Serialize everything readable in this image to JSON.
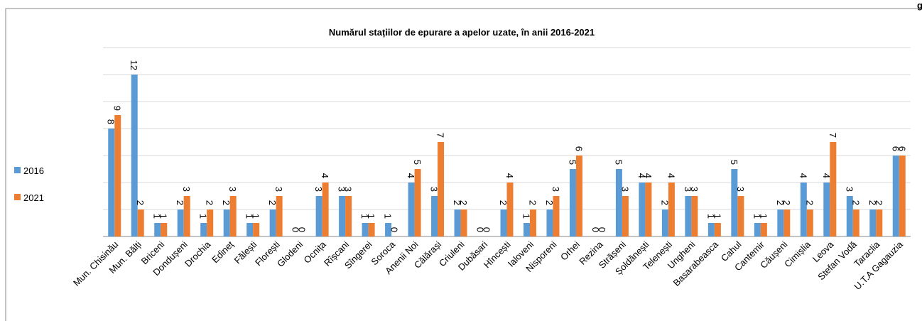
{
  "corner_text": "g",
  "chart_data": {
    "type": "bar",
    "title": "Numărul stațiilor de epurare a apelor uzate, în anii 2016-2021",
    "categories": [
      "Mun. Chisinău",
      "Mun. Bălți",
      "Briceni",
      "Dondușeni",
      "Drochia",
      "Edineț",
      "Fălești",
      "Florești",
      "Glodeni",
      "Ocnița",
      "Rîșcani",
      "Sîngerei",
      "Soroca",
      "Anenii Noi",
      "Călărași",
      "Criuleni",
      "Dubăsari",
      "Hîncești",
      "Ialoveni",
      "Nisporeni",
      "Orhei",
      "Rezina",
      "Strășeni",
      "Șoldănești",
      "Telenești",
      "Ungheni",
      "Basarabeasca",
      "Cahul",
      "Cantemir",
      "Căușeni",
      "Cimișlia",
      "Leova",
      "Stefan Vodă",
      "Taraclia",
      "U.T.A Gagauzia"
    ],
    "series": [
      {
        "name": "2016",
        "color": "#5b9bd5",
        "values": [
          8,
          12,
          1,
          2,
          1,
          2,
          1,
          2,
          0,
          3,
          3,
          1,
          1,
          4,
          3,
          2,
          0,
          2,
          1,
          2,
          5,
          0,
          5,
          4,
          2,
          3,
          1,
          5,
          1,
          2,
          4,
          4,
          3,
          2,
          6
        ]
      },
      {
        "name": "2021",
        "color": "#ed7d31",
        "values": [
          9,
          2,
          1,
          3,
          2,
          3,
          1,
          3,
          0,
          4,
          3,
          1,
          0,
          5,
          7,
          2,
          0,
          4,
          2,
          3,
          6,
          0,
          3,
          4,
          4,
          3,
          1,
          3,
          1,
          2,
          2,
          7,
          2,
          2,
          6
        ]
      }
    ],
    "ylim": [
      0,
      14
    ],
    "yticks": [
      0,
      2,
      4,
      6,
      8,
      10,
      12,
      14
    ],
    "grid": true,
    "legend": "left"
  }
}
